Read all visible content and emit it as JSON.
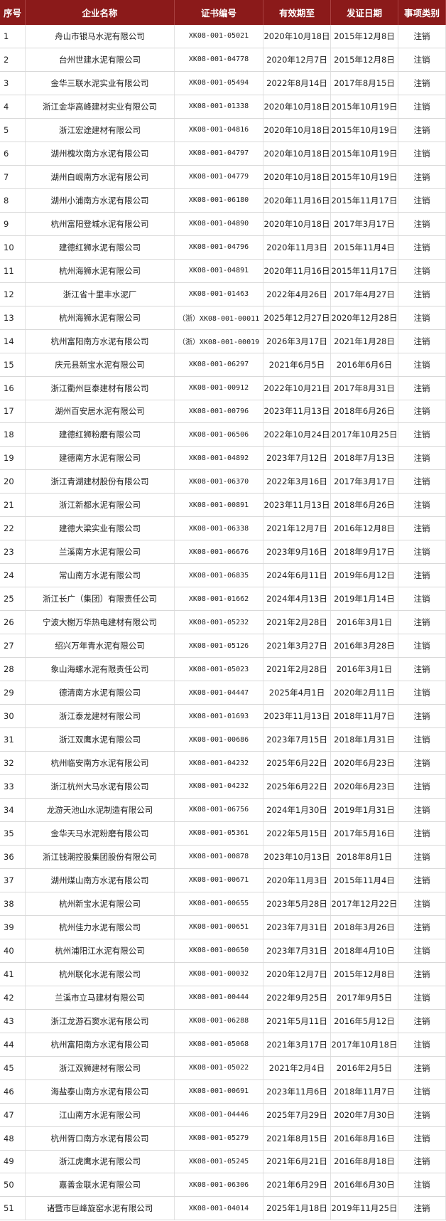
{
  "table": {
    "header": [
      "序号",
      "企业名称",
      "证书编号",
      "有效期至",
      "发证日期",
      "事项类别"
    ],
    "rows": [
      [
        "1",
        "舟山市银马水泥有限公司",
        "XK08-001-05021",
        "2020年10月18日",
        "2015年12月8日",
        "注销"
      ],
      [
        "2",
        "台州世建水泥有限公司",
        "XK08-001-04778",
        "2020年12月7日",
        "2015年12月8日",
        "注销"
      ],
      [
        "3",
        "金华三联水泥实业有限公司",
        "XK08-001-05494",
        "2022年8月14日",
        "2017年8月15日",
        "注销"
      ],
      [
        "4",
        "浙江金华高峰建材实业有限公司",
        "XK08-001-01338",
        "2020年10月18日",
        "2015年10月19日",
        "注销"
      ],
      [
        "5",
        "浙江宏途建材有限公司",
        "XK08-001-04816",
        "2020年10月18日",
        "2015年10月19日",
        "注销"
      ],
      [
        "6",
        "湖州槐坎南方水泥有限公司",
        "XK08-001-04797",
        "2020年10月18日",
        "2015年10月19日",
        "注销"
      ],
      [
        "7",
        "湖州白岘南方水泥有限公司",
        "XK08-001-04779",
        "2020年10月18日",
        "2015年10月19日",
        "注销"
      ],
      [
        "8",
        "湖州小浦南方水泥有限公司",
        "XK08-001-06180",
        "2020年11月16日",
        "2015年11月17日",
        "注销"
      ],
      [
        "9",
        "杭州富阳登城水泥有限公司",
        "XK08-001-04890",
        "2020年10月18日",
        "2017年3月17日",
        "注销"
      ],
      [
        "10",
        "建德红狮水泥有限公司",
        "XK08-001-04796",
        "2020年11月3日",
        "2015年11月4日",
        "注销"
      ],
      [
        "11",
        "杭州海狮水泥有限公司",
        "XK08-001-04891",
        "2020年11月16日",
        "2015年11月17日",
        "注销"
      ],
      [
        "12",
        "浙江省十里丰水泥厂",
        "XK08-001-01463",
        "2022年4月26日",
        "2017年4月27日",
        "注销"
      ],
      [
        "13",
        "杭州海狮水泥有限公司",
        "（浙）XK08-001-00011",
        "2025年12月27日",
        "2020年12月28日",
        "注销"
      ],
      [
        "14",
        "杭州富阳南方水泥有限公司",
        "（浙）XK08-001-00019",
        "2026年3月17日",
        "2021年1月28日",
        "注销"
      ],
      [
        "15",
        "庆元县新宝水泥有限公司",
        "XK08-001-06297",
        "2021年6月5日",
        "2016年6月6日",
        "注销"
      ],
      [
        "16",
        "浙江衢州巨泰建材有限公司",
        "XK08-001-00912",
        "2022年10月21日",
        "2017年8月31日",
        "注销"
      ],
      [
        "17",
        "湖州百安居水泥有限公司",
        "XK08-001-00796",
        "2023年11月13日",
        "2018年6月26日",
        "注销"
      ],
      [
        "18",
        "建德红狮粉磨有限公司",
        "XK08-001-06506",
        "2022年10月24日",
        "2017年10月25日",
        "注销"
      ],
      [
        "19",
        "建德南方水泥有限公司",
        "XK08-001-04892",
        "2023年7月12日",
        "2018年7月13日",
        "注销"
      ],
      [
        "20",
        "浙江青湖建材股份有限公司",
        "XK08-001-06370",
        "2022年3月16日",
        "2017年3月17日",
        "注销"
      ],
      [
        "21",
        "浙江新都水泥有限公司",
        "XK08-001-00891",
        "2023年11月13日",
        "2018年6月26日",
        "注销"
      ],
      [
        "22",
        "建德大梁实业有限公司",
        "XK08-001-06338",
        "2021年12月7日",
        "2016年12月8日",
        "注销"
      ],
      [
        "23",
        "兰溪南方水泥有限公司",
        "XK08-001-06676",
        "2023年9月16日",
        "2018年9月17日",
        "注销"
      ],
      [
        "24",
        "常山南方水泥有限公司",
        "XK08-001-06835",
        "2024年6月11日",
        "2019年6月12日",
        "注销"
      ],
      [
        "25",
        "浙江长广（集团）有限责任公司",
        "XK08-001-01662",
        "2024年4月13日",
        "2019年1月14日",
        "注销"
      ],
      [
        "26",
        "宁波大榭万华热电建材有限公司",
        "XK08-001-05232",
        "2021年2月28日",
        "2016年3月1日",
        "注销"
      ],
      [
        "27",
        "绍兴万年青水泥有限公司",
        "XK08-001-05126",
        "2021年3月27日",
        "2016年3月28日",
        "注销"
      ],
      [
        "28",
        "象山海螺水泥有限责任公司",
        "XK08-001-05023",
        "2021年2月28日",
        "2016年3月1日",
        "注销"
      ],
      [
        "29",
        "德清南方水泥有限公司",
        "XK08-001-04447",
        "2025年4月1日",
        "2020年2月11日",
        "注销"
      ],
      [
        "30",
        "浙江泰龙建材有限公司",
        "XK08-001-01693",
        "2023年11月13日",
        "2018年11月7日",
        "注销"
      ],
      [
        "31",
        "浙江双鹰水泥有限公司",
        "XK08-001-00686",
        "2023年7月15日",
        "2018年1月31日",
        "注销"
      ],
      [
        "32",
        "杭州临安南方水泥有限公司",
        "XK08-001-04232",
        "2025年6月22日",
        "2020年6月23日",
        "注销"
      ],
      [
        "33",
        "浙江杭州大马水泥有限公司",
        "XK08-001-04232",
        "2025年6月22日",
        "2020年6月23日",
        "注销"
      ],
      [
        "34",
        "龙游天池山水泥制造有限公司",
        "XK08-001-06756",
        "2024年1月30日",
        "2019年1月31日",
        "注销"
      ],
      [
        "35",
        "金华天马水泥粉磨有限公司",
        "XK08-001-05361",
        "2022年5月15日",
        "2017年5月16日",
        "注销"
      ],
      [
        "36",
        "浙江钱潮控股集团股份有限公司",
        "XK08-001-00878",
        "2023年10月13日",
        "2018年8月1日",
        "注销"
      ],
      [
        "37",
        "湖州煤山南方水泥有限公司",
        "XK08-001-00671",
        "2020年11月3日",
        "2015年11月4日",
        "注销"
      ],
      [
        "38",
        "杭州新宝水泥有限公司",
        "XK08-001-00655",
        "2023年5月28日",
        "2017年12月22日",
        "注销"
      ],
      [
        "39",
        "杭州佳力水泥有限公司",
        "XK08-001-00651",
        "2023年7月31日",
        "2018年3月26日",
        "注销"
      ],
      [
        "40",
        "杭州浦阳江水泥有限公司",
        "XK08-001-00650",
        "2023年7月31日",
        "2018年4月10日",
        "注销"
      ],
      [
        "41",
        "杭州联化水泥有限公司",
        "XK08-001-00032",
        "2020年12月7日",
        "2015年12月8日",
        "注销"
      ],
      [
        "42",
        "兰溪市立马建材有限公司",
        "XK08-001-00444",
        "2022年9月25日",
        "2017年9月5日",
        "注销"
      ],
      [
        "43",
        "浙江龙游石窦水泥有限公司",
        "XK08-001-06288",
        "2021年5月11日",
        "2016年5月12日",
        "注销"
      ],
      [
        "44",
        "杭州富阳南方水泥有限公司",
        "XK08-001-05068",
        "2021年3月17日",
        "2017年10月18日",
        "注销"
      ],
      [
        "45",
        "浙江双狮建材有限公司",
        "XK08-001-05022",
        "2021年2月4日",
        "2016年2月5日",
        "注销"
      ],
      [
        "46",
        "海盐泰山南方水泥有限公司",
        "XK08-001-00691",
        "2023年11月6日",
        "2018年11月7日",
        "注销"
      ],
      [
        "47",
        "江山南方水泥有限公司",
        "XK08-001-04446",
        "2025年7月29日",
        "2020年7月30日",
        "注销"
      ],
      [
        "48",
        "杭州胥口南方水泥有限公司",
        "XK08-001-05279",
        "2021年8月15日",
        "2016年8月16日",
        "注销"
      ],
      [
        "49",
        "浙江虎鹰水泥有限公司",
        "XK08-001-05245",
        "2021年6月21日",
        "2016年8月18日",
        "注销"
      ],
      [
        "50",
        "嘉善金联水泥有限公司",
        "XK08-001-06306",
        "2021年6月29日",
        "2016年6月30日",
        "注销"
      ],
      [
        "51",
        "诸暨市巨峰旋窑水泥有限公司",
        "XK08-001-04014",
        "2025年1月18日",
        "2019年11月25日",
        "注销"
      ]
    ]
  }
}
